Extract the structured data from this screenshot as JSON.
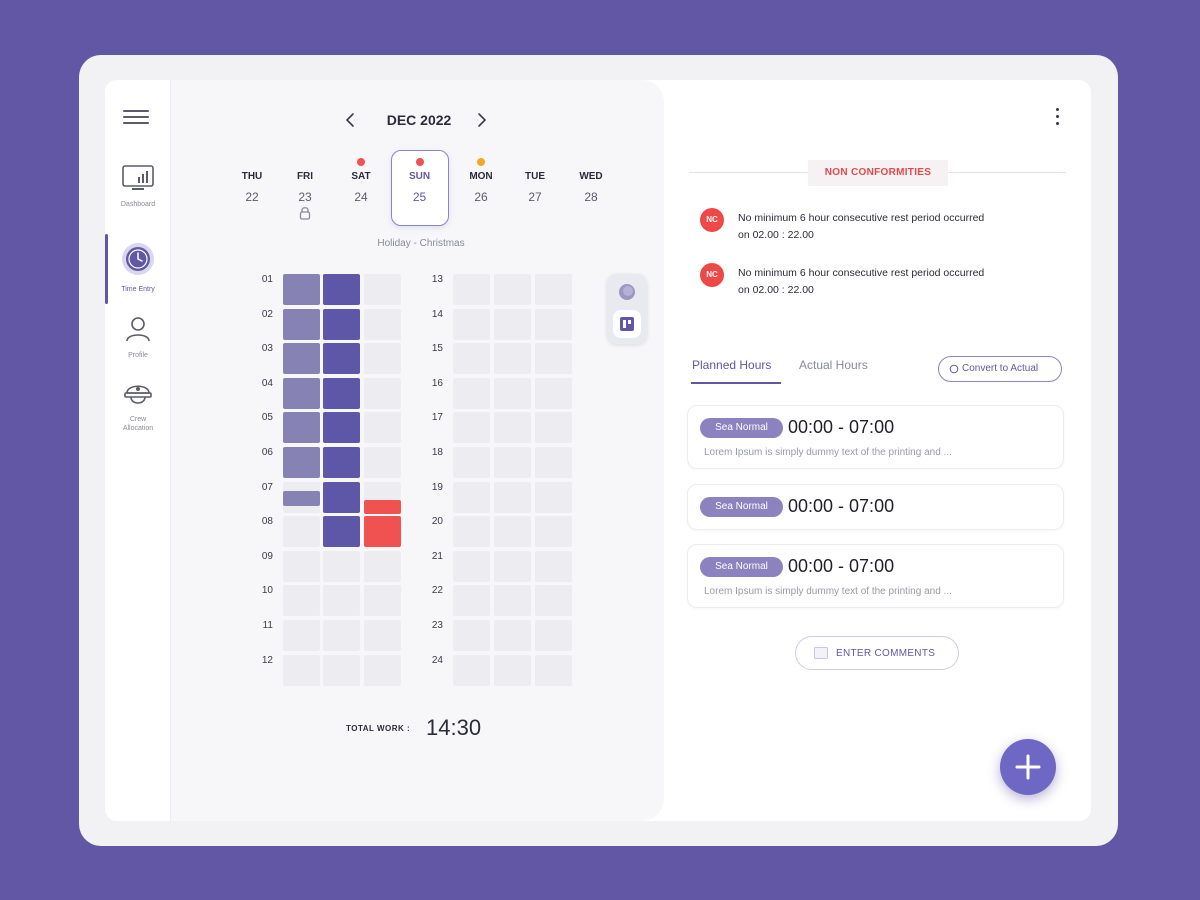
{
  "sidebar": {
    "items": [
      {
        "label": "Dashboard"
      },
      {
        "label": "Time Entry"
      },
      {
        "label": "Profile"
      },
      {
        "label": "Crew Allocation"
      }
    ]
  },
  "calendar": {
    "month_title": "DEC 2022",
    "days": [
      {
        "name": "THU",
        "num": "22"
      },
      {
        "name": "FRI",
        "num": "23"
      },
      {
        "name": "SAT",
        "num": "24"
      },
      {
        "name": "SUN",
        "num": "25"
      },
      {
        "name": "MON",
        "num": "26"
      },
      {
        "name": "TUE",
        "num": "27"
      },
      {
        "name": "WED",
        "num": "28"
      }
    ],
    "holiday_note": "Holiday - Christmas",
    "hours_left": [
      "01",
      "02",
      "03",
      "04",
      "05",
      "06",
      "07",
      "08",
      "09",
      "10",
      "11",
      "12"
    ],
    "hours_right": [
      "13",
      "14",
      "15",
      "16",
      "17",
      "18",
      "19",
      "20",
      "21",
      "22",
      "23",
      "24"
    ],
    "total_label": "TOTAL WORK :",
    "total_value": "14:30"
  },
  "colors": {
    "accent": "#6157a5",
    "block_light": "#8782b4",
    "block_dark": "#5e56a6",
    "alert_red": "#f05252",
    "dot_orange": "#f5a623"
  },
  "non_conformities": {
    "header": "NON CONFORMITIES",
    "items": [
      {
        "badge": "NC",
        "line1": "No minimum 6 hour consecutive rest period occurred",
        "line2": "on  02.00 : 22.00"
      },
      {
        "badge": "NC",
        "line1": "No minimum 6 hour consecutive rest period occurred",
        "line2": "on  02.00 : 22.00"
      }
    ]
  },
  "hours_tabs": {
    "planned": "Planned Hours",
    "actual": "Actual Hours",
    "convert_label": "Convert to Actual"
  },
  "entries": [
    {
      "tag": "Sea Normal",
      "time": "00:00 - 07:00",
      "desc": "Lorem Ipsum is simply dummy text of the printing and ..."
    },
    {
      "tag": "Sea Normal",
      "time": "00:00 - 07:00",
      "desc": ""
    },
    {
      "tag": "Sea Normal",
      "time": "00:00 - 07:00",
      "desc": "Lorem Ipsum is simply dummy text of the printing and ..."
    }
  ],
  "comments_label": "ENTER COMMENTS",
  "icons": {
    "menu": "hamburger-icon",
    "dashboard": "chart-icon",
    "time_entry": "clock-icon",
    "profile": "user-icon",
    "crew": "crew-icon",
    "lock": "lock-icon",
    "more": "more-vertical-icon",
    "add": "plus-icon"
  }
}
